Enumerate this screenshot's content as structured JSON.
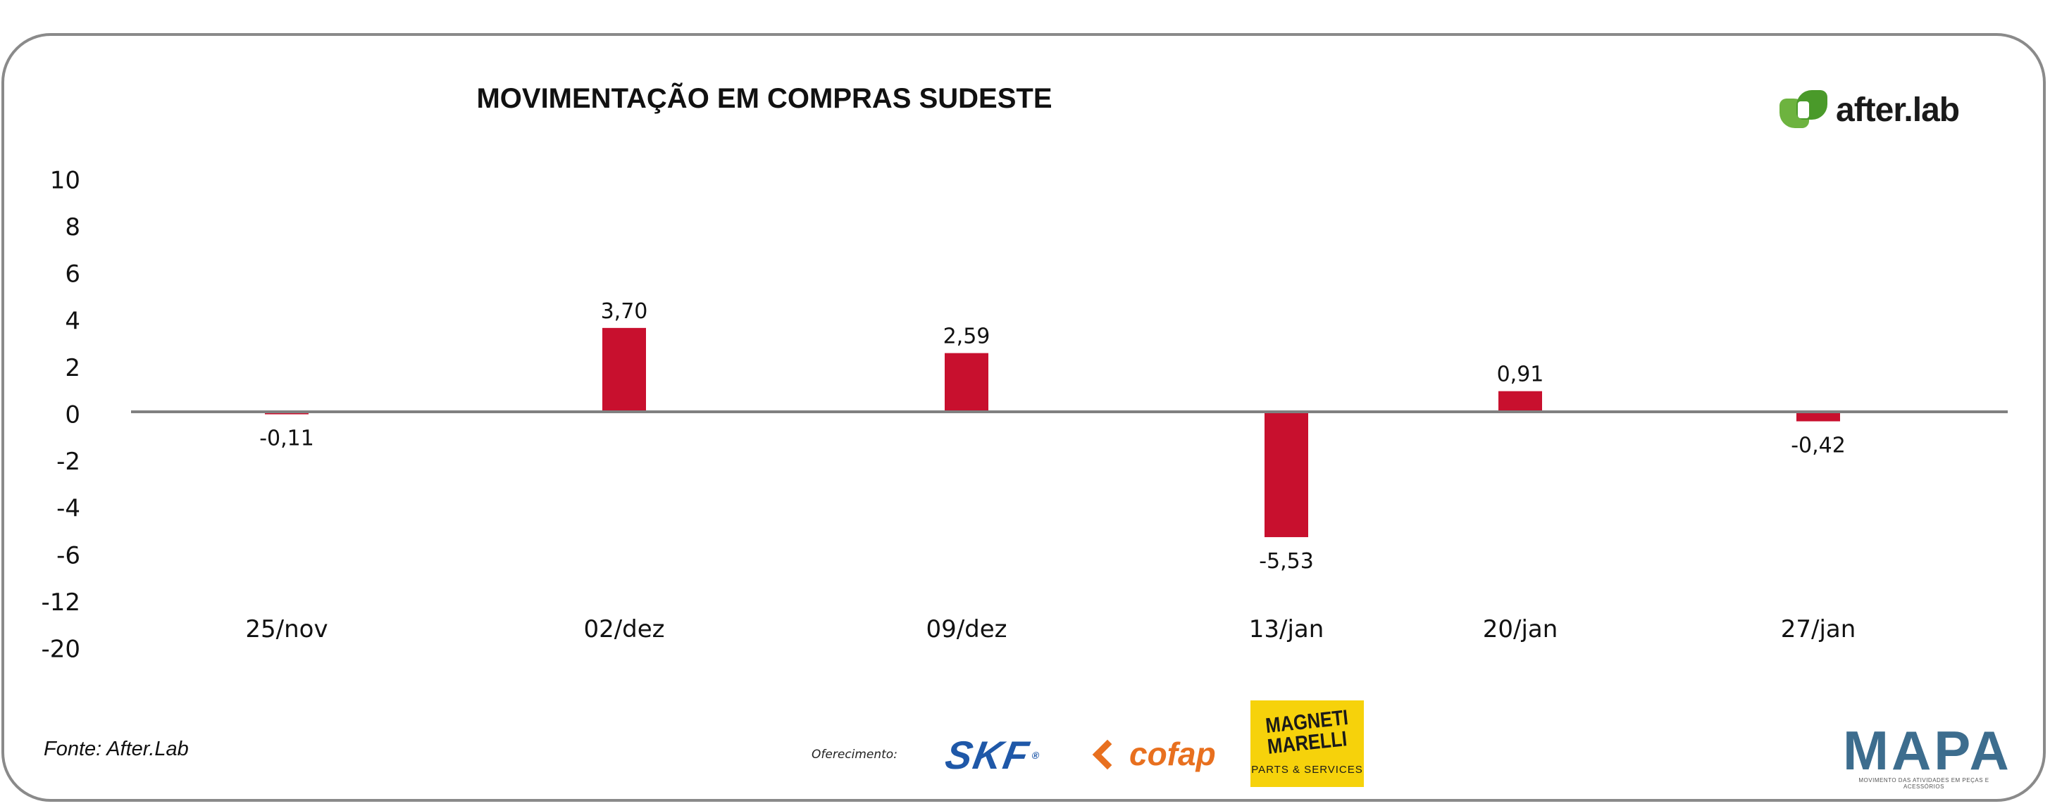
{
  "chart_data": {
    "type": "bar",
    "title": "MOVIMENTAÇÃO EM COMPRAS SUDESTE",
    "categories": [
      "25/nov",
      "02/dez",
      "09/dez",
      "13/jan",
      "20/jan",
      "27/jan"
    ],
    "values": [
      -0.11,
      3.7,
      2.59,
      -5.53,
      0.91,
      -0.42
    ],
    "data_labels": [
      "-0,11",
      "3,70",
      "2,59",
      "-5,53",
      "0,91",
      "-0,42"
    ],
    "y_tick_labels": [
      "10",
      "8",
      "6",
      "4",
      "2",
      "0",
      "-2",
      "-4",
      "-6",
      "-12",
      "-20"
    ],
    "xlabel": "",
    "ylabel": "",
    "bar_color": "#c8102e",
    "axis_color": "#808080",
    "grid": false,
    "legend": false
  },
  "footer": {
    "source": "Fonte: After.Lab",
    "sponsor_label": "Oferecimento:"
  },
  "brands": {
    "afterlab": "after.lab",
    "skf": "SKF",
    "skf_reg": "®",
    "cofap": "cofap",
    "magneti_line1": "MAGNETI",
    "magneti_line2": "MARELLI",
    "magneti_line3": "PARTS & SERVICES",
    "mapa": "MAPA",
    "mapa_sub": "MOVIMENTO DAS ATIVIDADES EM PEÇAS E ACESSÓRIOS"
  },
  "colors": {
    "afterlab_green": "#6db33f",
    "skf_blue": "#1f58a8",
    "cofap_orange": "#e8701f",
    "magneti_yellow": "#f6d20b"
  }
}
